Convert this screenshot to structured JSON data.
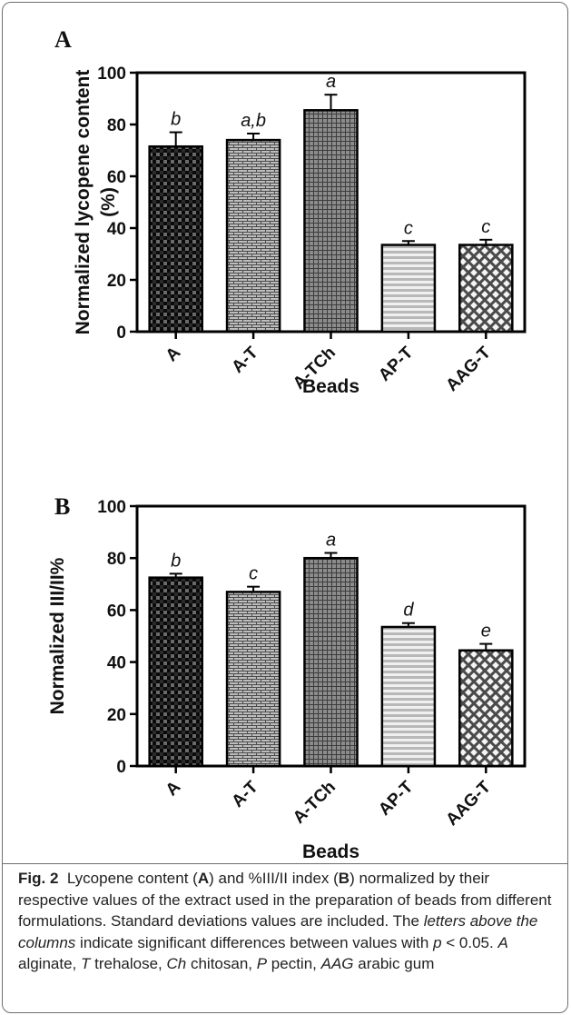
{
  "chart_data": [
    {
      "panel": "A",
      "type": "bar",
      "xlabel": "Beads",
      "ylabel_line1": "Normalized lycopene content",
      "ylabel_line2": "(%)",
      "ylim": [
        0,
        100
      ],
      "yticks": [
        "0",
        "20",
        "40",
        "60",
        "80",
        "100"
      ],
      "categories": [
        "A",
        "A-T",
        "A-TCh",
        "AP-T",
        "AAG-T"
      ],
      "values": [
        71.5,
        74,
        85.5,
        33.5,
        33.5
      ],
      "errors": [
        5.5,
        2.5,
        6,
        1.5,
        2
      ],
      "letters": [
        "b",
        "a,b",
        "a",
        "c",
        "c"
      ],
      "patterns": [
        "checker",
        "brick",
        "grid",
        "stripes",
        "diamond"
      ]
    },
    {
      "panel": "B",
      "type": "bar",
      "xlabel": "Beads",
      "ylabel_line1": "Normalized III/II%",
      "ylabel_line2": "",
      "ylim": [
        0,
        100
      ],
      "yticks": [
        "0",
        "20",
        "40",
        "60",
        "80",
        "100"
      ],
      "categories": [
        "A",
        "A-T",
        "A-TCh",
        "AP-T",
        "AAG-T"
      ],
      "values": [
        72.5,
        67,
        80,
        53.5,
        44.5
      ],
      "errors": [
        1.5,
        2,
        2,
        1.5,
        2.5
      ],
      "letters": [
        "b",
        "c",
        "a",
        "d",
        "e"
      ],
      "patterns": [
        "checker",
        "brick",
        "grid",
        "stripes",
        "diamond"
      ]
    }
  ],
  "caption": {
    "fig_label": "Fig. 2",
    "s1": "Lycopene content (",
    "b1": "A",
    "s2": ") and %III/II index (",
    "b2": "B",
    "s3": ") normalized by their respective values of the extract used in the preparation of beads from different formulations. Standard deviations values are included. The ",
    "i1": "letters above the columns",
    "s4": " indicate significant differences between values with ",
    "i2": "p",
    "s5": " < 0.05. ",
    "i3": "A",
    "s6": " alginate, ",
    "i4": "T",
    "s7": " trehalose, ",
    "i5": "Ch",
    "s8": " chitosan, ",
    "i6": "P",
    "s9": " pectin, ",
    "i7": "AAG",
    "s10": " arabic gum"
  }
}
